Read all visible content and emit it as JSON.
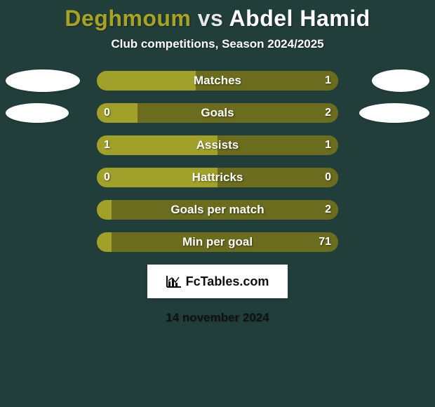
{
  "background_color": "#223e3a",
  "title": {
    "left_name": "Deghmoum",
    "vs": "vs",
    "right_name": "Abdel Hamid",
    "left_color": "#a9a324",
    "right_color": "#ffffff",
    "vs_color": "#e6e6e6",
    "fontsize": 32
  },
  "subtitle": {
    "text": "Club competitions, Season 2024/2025",
    "color": "#ffffff",
    "fontsize": 17
  },
  "bar_outer_color": "#6b6c1e",
  "stats": [
    {
      "label": "Matches",
      "left_value": "",
      "right_value": "1",
      "left_share": 0.41,
      "right_share": 0.41,
      "left_fill": "#a0a02a",
      "right_fill": "#6b6c1e",
      "left_ellipse": {
        "w": 106,
        "h": 32
      },
      "right_ellipse": {
        "w": 82,
        "h": 32
      }
    },
    {
      "label": "Goals",
      "left_value": "0",
      "right_value": "2",
      "left_share": 0.17,
      "right_share": 0.83,
      "left_fill": "#a0a02a",
      "right_fill": "#6b6c1e",
      "left_ellipse": {
        "w": 90,
        "h": 28
      },
      "right_ellipse": {
        "w": 100,
        "h": 28
      }
    },
    {
      "label": "Assists",
      "left_value": "1",
      "right_value": "1",
      "left_share": 0.5,
      "right_share": 0.5,
      "left_fill": "#a0a02a",
      "right_fill": "#6b6c1e",
      "left_ellipse": null,
      "right_ellipse": null
    },
    {
      "label": "Hattricks",
      "left_value": "0",
      "right_value": "0",
      "left_share": 0.5,
      "right_share": 0.5,
      "left_fill": "#a0a02a",
      "right_fill": "#6b6c1e",
      "left_ellipse": null,
      "right_ellipse": null
    },
    {
      "label": "Goals per match",
      "left_value": "",
      "right_value": "2",
      "left_share": 0.06,
      "right_share": 0.94,
      "left_fill": "#a0a02a",
      "right_fill": "#6b6c1e",
      "left_ellipse": null,
      "right_ellipse": null
    },
    {
      "label": "Min per goal",
      "left_value": "",
      "right_value": "71",
      "left_share": 0.06,
      "right_share": 0.94,
      "left_fill": "#a0a02a",
      "right_fill": "#6b6c1e",
      "left_ellipse": null,
      "right_ellipse": null
    }
  ],
  "footer": {
    "logo_text": "FcTables.com",
    "logo_bg": "#ffffff",
    "logo_text_color": "#0f0f0f",
    "date": "14 november 2024",
    "date_color": "#111111"
  }
}
